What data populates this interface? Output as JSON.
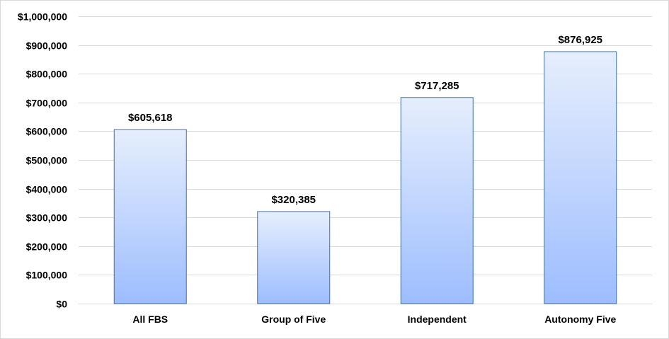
{
  "chart_data": {
    "type": "bar",
    "categories": [
      "All FBS",
      "Group of Five",
      "Independent",
      "Autonomy Five"
    ],
    "values": [
      605618,
      320385,
      717285,
      876925
    ],
    "data_labels": [
      "$605,618",
      "$320,385",
      "$717,285",
      "$876,925"
    ],
    "ylim": [
      0,
      1000000
    ],
    "yticks": [
      0,
      100000,
      200000,
      300000,
      400000,
      500000,
      600000,
      700000,
      800000,
      900000,
      1000000
    ],
    "ytick_labels": [
      "$0",
      "$100,000",
      "$200,000",
      "$300,000",
      "$400,000",
      "$500,000",
      "$600,000",
      "$700,000",
      "$800,000",
      "$900,000",
      "$1,000,000"
    ],
    "grid": true,
    "legend": "none",
    "colors": {
      "bar_top": "#e6eefc",
      "bar_bottom": "#9dbdff",
      "bar_border": "#41719c",
      "grid": "#d9d9d9"
    }
  }
}
